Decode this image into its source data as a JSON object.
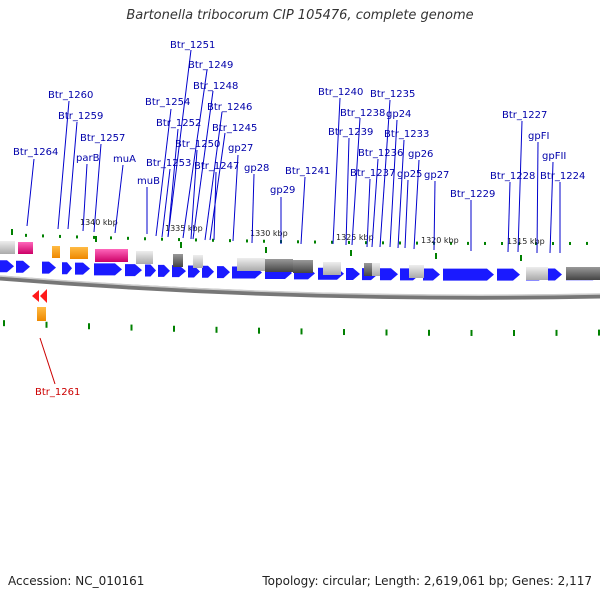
{
  "header": {
    "title": "Bartonella tribocorum CIP 105476, complete genome"
  },
  "footer": {
    "accession": "Accession: NC_010161",
    "topology": "Topology: circular; Length: 2,619,061 bp; Genes: 2,117"
  },
  "scale_labels": [
    "1340 kbp",
    "1335 kbp",
    "1330 kbp",
    "1325 kbp",
    "1320 kbp",
    "1315 kbp"
  ],
  "gene_labels": [
    "Btr_1251",
    "Btr_1249",
    "Btr_1248",
    "Btr_1246",
    "Btr_1245",
    "Btr_1254",
    "Btr_1252",
    "Btr_1250",
    "Btr_1247",
    "Btr_1253",
    "muB",
    "gp27",
    "gp28",
    "gp29",
    "Btr_1260",
    "Btr_1259",
    "Btr_1257",
    "parB",
    "muA",
    "Btr_1264",
    "Btr_1240",
    "Btr_1238",
    "Btr_1239",
    "Btr_1235",
    "gp24",
    "Btr_1233",
    "Btr_1236",
    "gp26",
    "Btr_1237",
    "gp25",
    "gp27",
    "Btr_1241",
    "Btr_1227",
    "gpFI",
    "gpFII",
    "Btr_1228",
    "Btr_1224",
    "Btr_1229"
  ],
  "reverse_gene_labels": [
    "Btr_1261"
  ],
  "colors": {
    "label_forward": "#0000aa",
    "label_reverse": "#cc0000",
    "cds_forward": "#1a1aff",
    "cds_reverse": "#ff1a1a",
    "rna_orange": "#ff9900",
    "rna_magenta": "#e0197d",
    "tick_green": "#008000",
    "backbone": "#888888"
  }
}
